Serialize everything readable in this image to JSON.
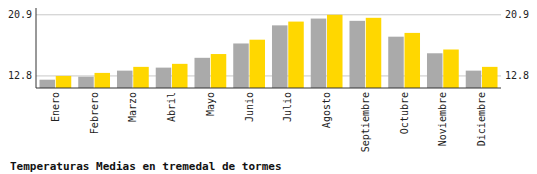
{
  "chart_data": {
    "type": "bar",
    "title": "Temperaturas Medias en tremedal de tormes",
    "categories": [
      "Enero",
      "Febrero",
      "Marzo",
      "Abril",
      "Mayo",
      "Junio",
      "Julio",
      "Agosto",
      "Septiembre",
      "Octubre",
      "Noviembre",
      "Diciembre"
    ],
    "series": [
      {
        "color": "#AAAAAA",
        "values": [
          12.3,
          12.7,
          13.5,
          13.9,
          15.2,
          17.1,
          19.5,
          20.4,
          20.1,
          18.0,
          15.8,
          13.5
        ]
      },
      {
        "color": "#FFD700",
        "values": [
          12.8,
          13.2,
          14.0,
          14.4,
          15.7,
          17.6,
          20.0,
          20.9,
          20.5,
          18.5,
          16.3,
          14.0
        ]
      }
    ],
    "ylim": [
      11.2,
      21.8
    ],
    "yticks": [
      12.8,
      20.9
    ],
    "grid": true
  }
}
